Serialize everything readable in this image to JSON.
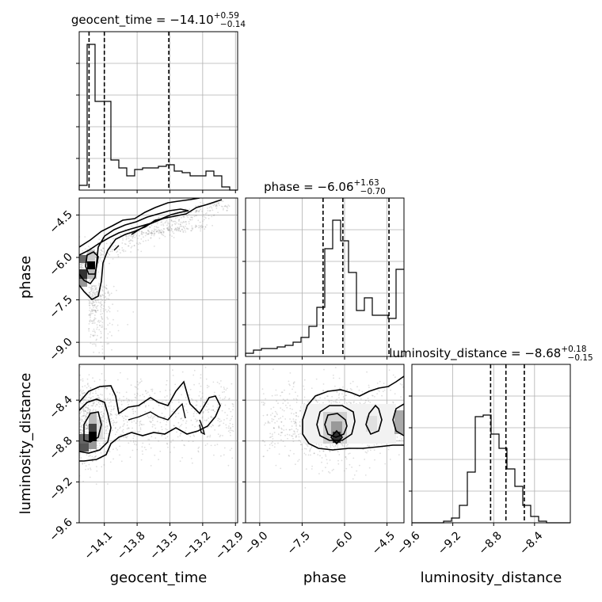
{
  "chart_data": {
    "type": "corner",
    "parameters": [
      "geocent_time",
      "phase",
      "luminosity_distance"
    ],
    "titles": [
      {
        "name": "geocent_time",
        "median": "−14.10",
        "plus": "+0.59",
        "minus": "−0.14"
      },
      {
        "name": "phase",
        "median": "−6.06",
        "plus": "+1.63",
        "minus": "−0.70"
      },
      {
        "name": "luminosity_distance",
        "median": "−8.68",
        "plus": "+0.18",
        "minus": "−0.15"
      }
    ],
    "ranges": {
      "geocent_time": [
        -14.33,
        -12.88
      ],
      "phase": [
        -9.5,
        -3.9
      ],
      "luminosity_distance": [
        -9.6,
        -8.05
      ]
    },
    "ticks": {
      "geocent_time": [
        -14.1,
        -13.8,
        -13.5,
        -13.2,
        -12.9
      ],
      "phase": [
        -9.0,
        -7.5,
        -6.0,
        -4.5
      ],
      "luminosity_distance": [
        -9.6,
        -9.2,
        -8.8,
        -8.4
      ]
    },
    "tick_labels": {
      "geocent_time": [
        "−14.1",
        "−13.8",
        "−13.5",
        "−13.2",
        "−12.9"
      ],
      "phase": [
        "−9.0",
        "−7.5",
        "−6.0",
        "−4.5"
      ],
      "luminosity_distance": [
        "−9.6",
        "−9.2",
        "−8.8",
        "−8.4"
      ]
    },
    "row_tick_labels": {
      "phase": [
        "−4.5",
        "−6.0",
        "−7.5",
        "−9.0"
      ],
      "luminosity_distance": [
        "−8.4",
        "−8.8",
        "−9.2",
        "−9.6"
      ]
    },
    "quantiles": {
      "geocent_time": [
        -14.24,
        -14.1,
        -13.51
      ],
      "phase": [
        -6.76,
        -6.06,
        -4.43
      ],
      "luminosity_distance": [
        -8.83,
        -8.68,
        -8.5
      ]
    },
    "histograms": {
      "geocent_time": {
        "start": -14.33,
        "width": 0.0725,
        "counts": [
          0.03,
          0.92,
          0.56,
          0.56,
          0.19,
          0.14,
          0.09,
          0.13,
          0.14,
          0.14,
          0.15,
          0.16,
          0.12,
          0.11,
          0.09,
          0.09,
          0.12,
          0.09,
          0.02,
          0.0
        ]
      },
      "phase": {
        "start": -9.5,
        "width": 0.28,
        "counts": [
          0.02,
          0.04,
          0.05,
          0.05,
          0.06,
          0.07,
          0.09,
          0.12,
          0.19,
          0.31,
          0.68,
          0.86,
          0.73,
          0.53,
          0.29,
          0.37,
          0.26,
          0.26,
          0.24,
          0.55
        ]
      },
      "luminosity_distance": {
        "start": -9.6,
        "width": 0.0775,
        "counts": [
          0.0,
          0.0,
          0.0,
          0.0,
          0.01,
          0.03,
          0.11,
          0.32,
          0.67,
          0.68,
          0.56,
          0.47,
          0.34,
          0.23,
          0.11,
          0.04,
          0.01,
          0.0,
          0.0,
          0.0
        ]
      }
    },
    "grid": true
  }
}
